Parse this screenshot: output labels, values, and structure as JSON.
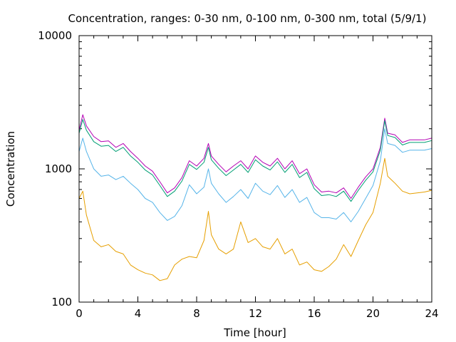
{
  "chart_data": {
    "type": "line",
    "title": "Concentration, ranges: 0-30 nm, 0-100 nm, 0-300 nm, total (5/9/1)",
    "xlabel": "Time [hour]",
    "ylabel": "Concentration",
    "xlim": [
      0,
      24
    ],
    "ylim": [
      100,
      10000
    ],
    "y_scale": "log",
    "x_ticks": [
      0,
      4,
      8,
      12,
      16,
      20,
      24
    ],
    "x_tick_labels": [
      "0",
      "4",
      "8",
      "12",
      "16",
      "20",
      "24"
    ],
    "y_ticks": [
      100,
      1000,
      10000
    ],
    "y_tick_labels": [
      "100",
      "1000",
      "10000"
    ],
    "grid": false,
    "legend": "none",
    "x": [
      0,
      0.25,
      0.5,
      1,
      1.5,
      2,
      2.5,
      3,
      3.5,
      4,
      4.5,
      5,
      5.5,
      6,
      6.5,
      7,
      7.5,
      8,
      8.5,
      8.8,
      9,
      9.5,
      10,
      10.5,
      11,
      11.5,
      12,
      12.5,
      13,
      13.5,
      14,
      14.5,
      15,
      15.5,
      16,
      16.5,
      17,
      17.5,
      18,
      18.5,
      19,
      19.5,
      20,
      20.5,
      20.8,
      21,
      21.5,
      22,
      22.5,
      23,
      23.5,
      24
    ],
    "series": [
      {
        "color": "#b400b4",
        "values": [
          1950,
          2550,
          2100,
          1750,
          1600,
          1620,
          1450,
          1550,
          1350,
          1200,
          1050,
          960,
          800,
          660,
          720,
          860,
          1150,
          1050,
          1200,
          1550,
          1250,
          1080,
          950,
          1050,
          1150,
          1000,
          1250,
          1120,
          1050,
          1200,
          1000,
          1150,
          920,
          1000,
          760,
          670,
          680,
          660,
          720,
          600,
          730,
          870,
          1000,
          1450,
          2400,
          1850,
          1800,
          1580,
          1650,
          1650,
          1650,
          1700
        ]
      },
      {
        "color": "#009e73",
        "values": [
          1850,
          2350,
          1950,
          1600,
          1480,
          1500,
          1350,
          1450,
          1250,
          1120,
          980,
          900,
          750,
          620,
          680,
          810,
          1080,
          990,
          1120,
          1450,
          1170,
          1010,
          890,
          980,
          1080,
          940,
          1170,
          1050,
          980,
          1130,
          940,
          1080,
          860,
          940,
          710,
          630,
          640,
          620,
          680,
          570,
          690,
          820,
          950,
          1380,
          2300,
          1780,
          1720,
          1510,
          1580,
          1580,
          1580,
          1630
        ]
      },
      {
        "color": "#56b4e9",
        "values": [
          1350,
          1700,
          1350,
          1000,
          880,
          900,
          830,
          880,
          780,
          700,
          600,
          560,
          470,
          410,
          440,
          530,
          760,
          650,
          730,
          1000,
          780,
          650,
          560,
          620,
          700,
          600,
          780,
          680,
          640,
          750,
          610,
          700,
          560,
          610,
          470,
          430,
          430,
          420,
          470,
          400,
          480,
          600,
          750,
          1150,
          2000,
          1550,
          1500,
          1330,
          1380,
          1380,
          1380,
          1420
        ]
      },
      {
        "color": "#e69f00",
        "values": [
          600,
          680,
          450,
          290,
          260,
          270,
          240,
          230,
          190,
          175,
          165,
          160,
          145,
          150,
          190,
          210,
          220,
          215,
          290,
          480,
          320,
          250,
          230,
          250,
          400,
          280,
          300,
          260,
          250,
          300,
          230,
          250,
          190,
          200,
          175,
          170,
          185,
          210,
          270,
          220,
          290,
          380,
          470,
          780,
          1200,
          880,
          780,
          680,
          650,
          660,
          670,
          690
        ]
      }
    ]
  }
}
